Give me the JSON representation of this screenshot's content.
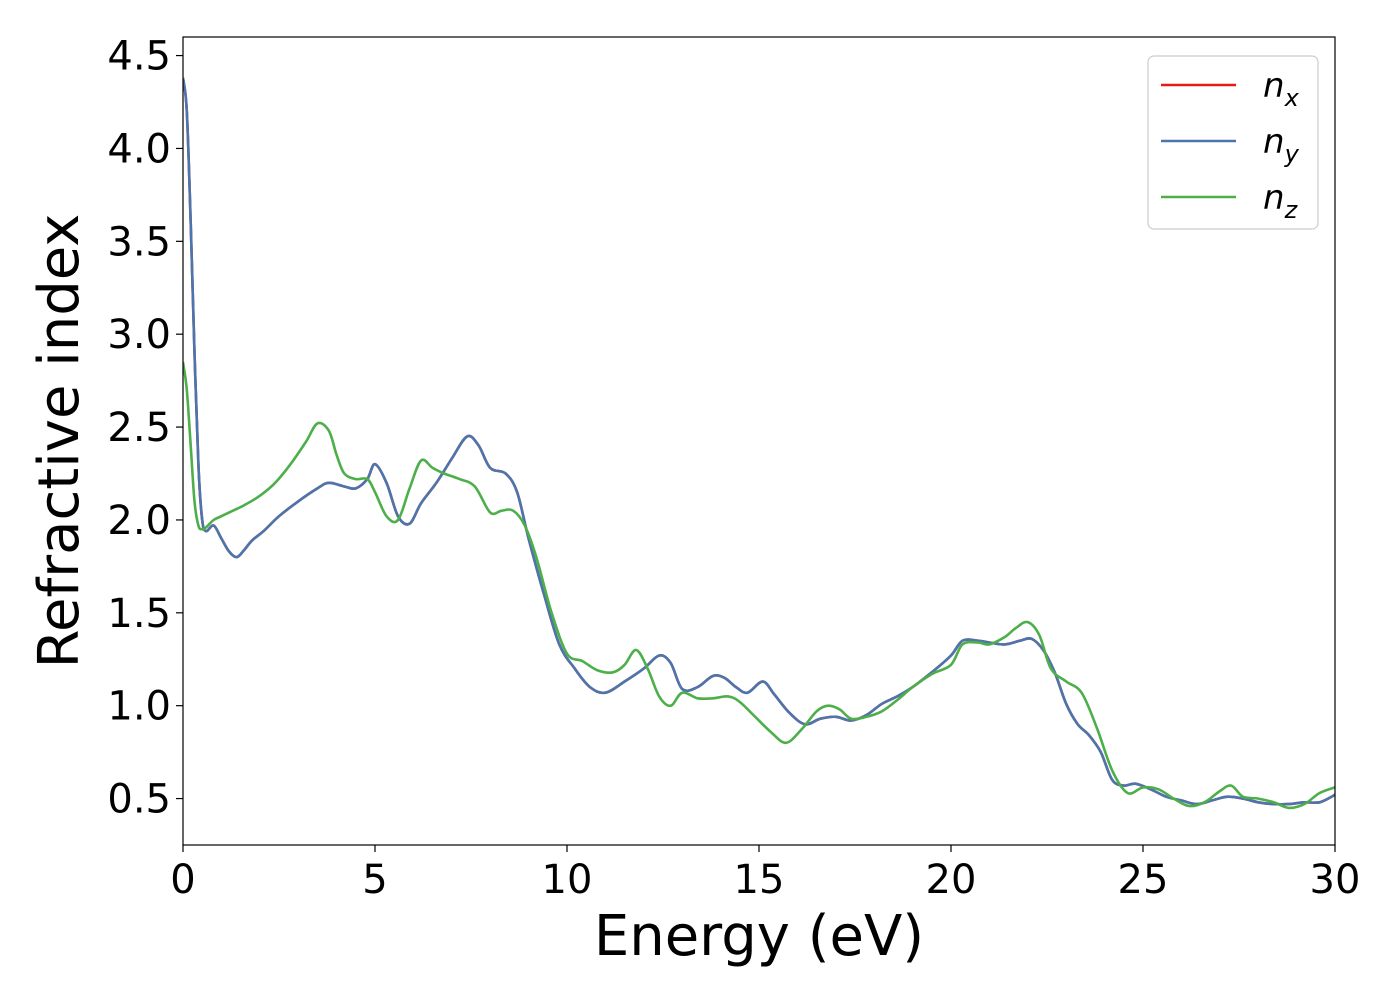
{
  "chart_data": {
    "type": "line",
    "title": "",
    "xlabel": "Energy (eV)",
    "ylabel": "Refractive index",
    "xlim": [
      0,
      30
    ],
    "ylim": [
      0.25,
      4.6
    ],
    "xticks": [
      0,
      5,
      10,
      15,
      20,
      25,
      30
    ],
    "yticks": [
      0.5,
      1.0,
      1.5,
      2.0,
      2.5,
      3.0,
      3.5,
      4.0,
      4.5
    ],
    "grid": false,
    "legend_position": "top-right",
    "series": [
      {
        "name": "n",
        "subscript": "x",
        "color": "#e41a1c",
        "x": [
          0,
          0.1,
          0.2,
          0.3,
          0.4,
          0.5,
          0.6,
          0.8,
          1.0,
          1.2,
          1.4,
          1.6,
          1.8,
          2.1,
          2.5,
          3.0,
          3.5,
          3.8,
          4.2,
          4.5,
          4.8,
          5.0,
          5.3,
          5.6,
          5.9,
          6.2,
          6.6,
          7.0,
          7.4,
          7.7,
          8.0,
          8.4,
          8.7,
          9.0,
          9.4,
          9.8,
          10.2,
          10.6,
          11.0,
          11.5,
          12.0,
          12.4,
          12.7,
          13.0,
          13.4,
          13.8,
          14.1,
          14.4,
          14.7,
          15.1,
          15.4,
          15.8,
          16.2,
          16.6,
          17.0,
          17.4,
          17.8,
          18.2,
          18.6,
          19.0,
          19.5,
          20.0,
          20.3,
          20.7,
          21.0,
          21.4,
          21.8,
          22.1,
          22.4,
          22.7,
          23.0,
          23.3,
          23.6,
          23.9,
          24.2,
          24.5,
          24.8,
          25.2,
          25.6,
          26.0,
          26.4,
          26.8,
          27.2,
          27.6,
          28.0,
          28.4,
          28.8,
          29.2,
          29.6,
          30.0
        ],
        "y": [
          4.38,
          4.2,
          3.6,
          2.9,
          2.3,
          2.0,
          1.94,
          1.97,
          1.9,
          1.83,
          1.8,
          1.84,
          1.89,
          1.94,
          2.02,
          2.1,
          2.17,
          2.2,
          2.18,
          2.17,
          2.22,
          2.3,
          2.2,
          2.02,
          1.98,
          2.09,
          2.2,
          2.33,
          2.45,
          2.4,
          2.28,
          2.25,
          2.15,
          1.9,
          1.6,
          1.33,
          1.2,
          1.1,
          1.07,
          1.13,
          1.2,
          1.27,
          1.23,
          1.09,
          1.1,
          1.16,
          1.15,
          1.1,
          1.07,
          1.13,
          1.06,
          0.96,
          0.9,
          0.93,
          0.94,
          0.92,
          0.95,
          1.01,
          1.05,
          1.1,
          1.18,
          1.27,
          1.35,
          1.35,
          1.34,
          1.33,
          1.35,
          1.36,
          1.3,
          1.18,
          1.01,
          0.9,
          0.84,
          0.75,
          0.6,
          0.57,
          0.58,
          0.55,
          0.51,
          0.49,
          0.47,
          0.49,
          0.51,
          0.5,
          0.48,
          0.47,
          0.47,
          0.48,
          0.48,
          0.52
        ]
      },
      {
        "name": "n",
        "subscript": "y",
        "color": "#4a76ad",
        "x": [
          0,
          0.1,
          0.2,
          0.3,
          0.4,
          0.5,
          0.6,
          0.8,
          1.0,
          1.2,
          1.4,
          1.6,
          1.8,
          2.1,
          2.5,
          3.0,
          3.5,
          3.8,
          4.2,
          4.5,
          4.8,
          5.0,
          5.3,
          5.6,
          5.9,
          6.2,
          6.6,
          7.0,
          7.4,
          7.7,
          8.0,
          8.4,
          8.7,
          9.0,
          9.4,
          9.8,
          10.2,
          10.6,
          11.0,
          11.5,
          12.0,
          12.4,
          12.7,
          13.0,
          13.4,
          13.8,
          14.1,
          14.4,
          14.7,
          15.1,
          15.4,
          15.8,
          16.2,
          16.6,
          17.0,
          17.4,
          17.8,
          18.2,
          18.6,
          19.0,
          19.5,
          20.0,
          20.3,
          20.7,
          21.0,
          21.4,
          21.8,
          22.1,
          22.4,
          22.7,
          23.0,
          23.3,
          23.6,
          23.9,
          24.2,
          24.5,
          24.8,
          25.2,
          25.6,
          26.0,
          26.4,
          26.8,
          27.2,
          27.6,
          28.0,
          28.4,
          28.8,
          29.2,
          29.6,
          30.0
        ],
        "y": [
          4.38,
          4.2,
          3.6,
          2.9,
          2.3,
          2.0,
          1.94,
          1.97,
          1.9,
          1.83,
          1.8,
          1.84,
          1.89,
          1.94,
          2.02,
          2.1,
          2.17,
          2.2,
          2.18,
          2.17,
          2.22,
          2.3,
          2.2,
          2.02,
          1.98,
          2.09,
          2.2,
          2.33,
          2.45,
          2.4,
          2.28,
          2.25,
          2.15,
          1.9,
          1.6,
          1.33,
          1.2,
          1.1,
          1.07,
          1.13,
          1.2,
          1.27,
          1.23,
          1.09,
          1.1,
          1.16,
          1.15,
          1.1,
          1.07,
          1.13,
          1.06,
          0.96,
          0.9,
          0.93,
          0.94,
          0.92,
          0.95,
          1.01,
          1.05,
          1.1,
          1.18,
          1.27,
          1.35,
          1.35,
          1.34,
          1.33,
          1.35,
          1.36,
          1.3,
          1.18,
          1.01,
          0.9,
          0.84,
          0.75,
          0.6,
          0.57,
          0.58,
          0.55,
          0.51,
          0.49,
          0.47,
          0.49,
          0.51,
          0.5,
          0.48,
          0.47,
          0.47,
          0.48,
          0.48,
          0.52
        ]
      },
      {
        "name": "n",
        "subscript": "z",
        "color": "#4daf4a",
        "x": [
          0,
          0.1,
          0.2,
          0.3,
          0.4,
          0.5,
          0.6,
          0.8,
          1.0,
          1.3,
          1.6,
          2.0,
          2.4,
          2.8,
          3.2,
          3.5,
          3.8,
          4.0,
          4.2,
          4.5,
          4.8,
          5.0,
          5.3,
          5.6,
          5.9,
          6.2,
          6.5,
          6.8,
          7.2,
          7.6,
          8.0,
          8.3,
          8.6,
          8.9,
          9.2,
          9.6,
          10.0,
          10.4,
          10.8,
          11.2,
          11.5,
          11.8,
          12.1,
          12.4,
          12.7,
          13.0,
          13.4,
          13.8,
          14.2,
          14.5,
          14.9,
          15.3,
          15.7,
          16.1,
          16.5,
          16.8,
          17.1,
          17.4,
          17.8,
          18.2,
          18.6,
          19.0,
          19.5,
          20.0,
          20.3,
          20.7,
          21.0,
          21.4,
          21.7,
          22.0,
          22.3,
          22.6,
          23.0,
          23.4,
          23.8,
          24.2,
          24.6,
          25.0,
          25.4,
          25.8,
          26.2,
          26.6,
          27.0,
          27.3,
          27.6,
          28.0,
          28.4,
          28.8,
          29.2,
          29.6,
          30.0
        ],
        "y": [
          2.85,
          2.7,
          2.4,
          2.1,
          1.97,
          1.95,
          1.96,
          2.0,
          2.02,
          2.05,
          2.08,
          2.13,
          2.2,
          2.3,
          2.42,
          2.52,
          2.48,
          2.35,
          2.25,
          2.22,
          2.22,
          2.15,
          2.02,
          2.0,
          2.17,
          2.32,
          2.28,
          2.25,
          2.22,
          2.18,
          2.04,
          2.05,
          2.05,
          1.97,
          1.8,
          1.5,
          1.28,
          1.24,
          1.19,
          1.18,
          1.22,
          1.3,
          1.2,
          1.05,
          1.0,
          1.07,
          1.04,
          1.04,
          1.05,
          1.02,
          0.94,
          0.86,
          0.8,
          0.87,
          0.97,
          1.0,
          0.98,
          0.93,
          0.94,
          0.97,
          1.03,
          1.1,
          1.17,
          1.22,
          1.33,
          1.34,
          1.33,
          1.37,
          1.42,
          1.45,
          1.38,
          1.2,
          1.13,
          1.07,
          0.88,
          0.65,
          0.53,
          0.56,
          0.55,
          0.5,
          0.46,
          0.48,
          0.54,
          0.57,
          0.51,
          0.5,
          0.48,
          0.45,
          0.47,
          0.53,
          0.56
        ]
      }
    ]
  }
}
